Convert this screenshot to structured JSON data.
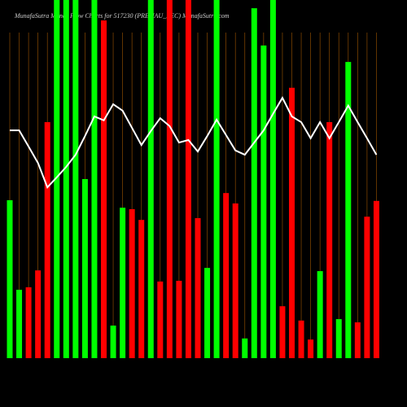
{
  "chart_data": {
    "type": "money-flow",
    "title": "MunafaSutra  Money Flow  Charts for 517230              (PREMAU_EEC) MunafaSutra.com",
    "ylim": [
      0,
      100
    ],
    "grid": true,
    "grid_color": "#8a4a00",
    "bars": {
      "values": [
        44.1,
        19.1,
        19.8,
        24.5,
        65.9,
        100,
        100,
        100,
        50,
        100,
        94.3,
        9.1,
        42.0,
        41.6,
        38.6,
        100,
        21.4,
        100,
        21.6,
        100,
        39.1,
        25.2,
        100,
        46.1,
        43.2,
        5.5,
        97.7,
        87.3,
        100,
        14.5,
        75.5,
        10.5,
        5.2,
        24.3,
        65.9,
        10.9,
        82.7,
        10,
        39.5,
        43.9
      ],
      "colors": [
        "#00ff00",
        "#00ff00",
        "#ff0000",
        "#ff0000",
        "#ff0000",
        "#00ff00",
        "#00ff00",
        "#00ff00",
        "#00ff00",
        "#00ff00",
        "#ff0000",
        "#00ff00",
        "#00ff00",
        "#ff0000",
        "#ff0000",
        "#00ff00",
        "#ff0000",
        "#ff0000",
        "#ff0000",
        "#ff0000",
        "#ff0000",
        "#00ff00",
        "#00ff00",
        "#ff0000",
        "#ff0000",
        "#00ff00",
        "#00ff00",
        "#00ff00",
        "#00ff00",
        "#ff0000",
        "#ff0000",
        "#ff0000",
        "#ff0000",
        "#00ff00",
        "#ff0000",
        "#00ff00",
        "#00ff00",
        "#ff0000",
        "#ff0000",
        "#ff0000"
      ]
    },
    "line": {
      "color": "#ffffff",
      "values": [
        63.6,
        63.6,
        59.1,
        54.5,
        47.7,
        50.5,
        53.4,
        56.8,
        62.0,
        67.5,
        66.4,
        70.9,
        69.1,
        64.3,
        59.5,
        63.4,
        67.0,
        64.8,
        60.2,
        60.9,
        57.7,
        62.0,
        66.6,
        62.3,
        58.0,
        56.8,
        60.2,
        63.6,
        68.2,
        72.7,
        67.5,
        65.9,
        61.4,
        65.9,
        61.4,
        65.9,
        70.5,
        65.9,
        61.4,
        56.8
      ]
    }
  }
}
